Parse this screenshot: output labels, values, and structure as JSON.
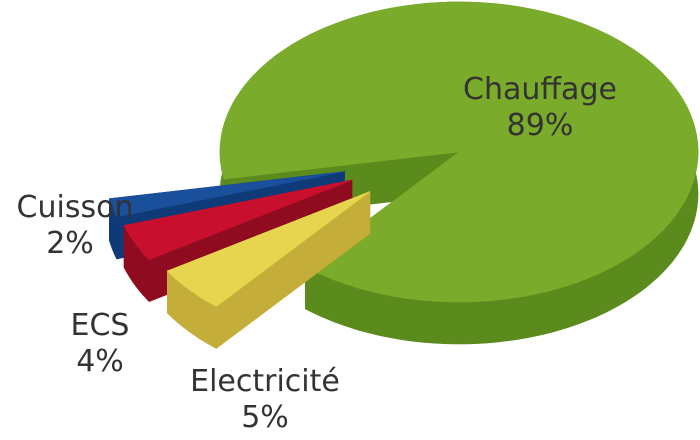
{
  "chart_data": {
    "type": "pie",
    "style": "3d-exploded",
    "slices": [
      {
        "label": "Chauffage",
        "value": 89,
        "value_label": "89%",
        "color": "#7aab2a",
        "side_color": "#5b8a1d",
        "exploded": false
      },
      {
        "label": "Electricité",
        "value": 5,
        "value_label": "5%",
        "color": "#e8d54f",
        "side_color": "#c4ad38",
        "exploded": true
      },
      {
        "label": "ECS",
        "value": 4,
        "value_label": "4%",
        "color": "#c8102e",
        "side_color": "#8e0b20",
        "exploded": true
      },
      {
        "label": "Cuisson",
        "value": 2,
        "value_label": "2%",
        "color": "#1a4f9c",
        "side_color": "#0f3a78",
        "exploded": true
      }
    ]
  }
}
